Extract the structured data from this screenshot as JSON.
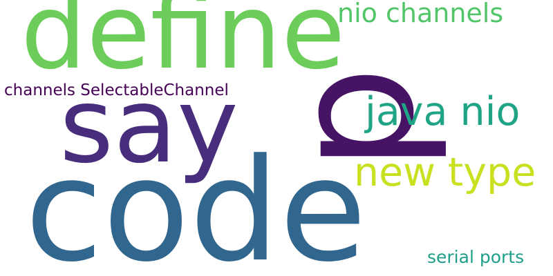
{
  "words": [
    {
      "text": "define",
      "color": "#6ccd5a"
    },
    {
      "text": "say",
      "color": "#472d7b"
    },
    {
      "text": "code",
      "color": "#31668e"
    },
    {
      "text": "p",
      "color": "#471365"
    },
    {
      "text": "nio channels",
      "color": "#52c569"
    },
    {
      "text": "java nio",
      "color": "#20a486"
    },
    {
      "text": "new type",
      "color": "#c8e020"
    },
    {
      "text": "channels SelectableChannel",
      "color": "#440154"
    },
    {
      "text": "serial ports",
      "color": "#1f9e89"
    }
  ]
}
